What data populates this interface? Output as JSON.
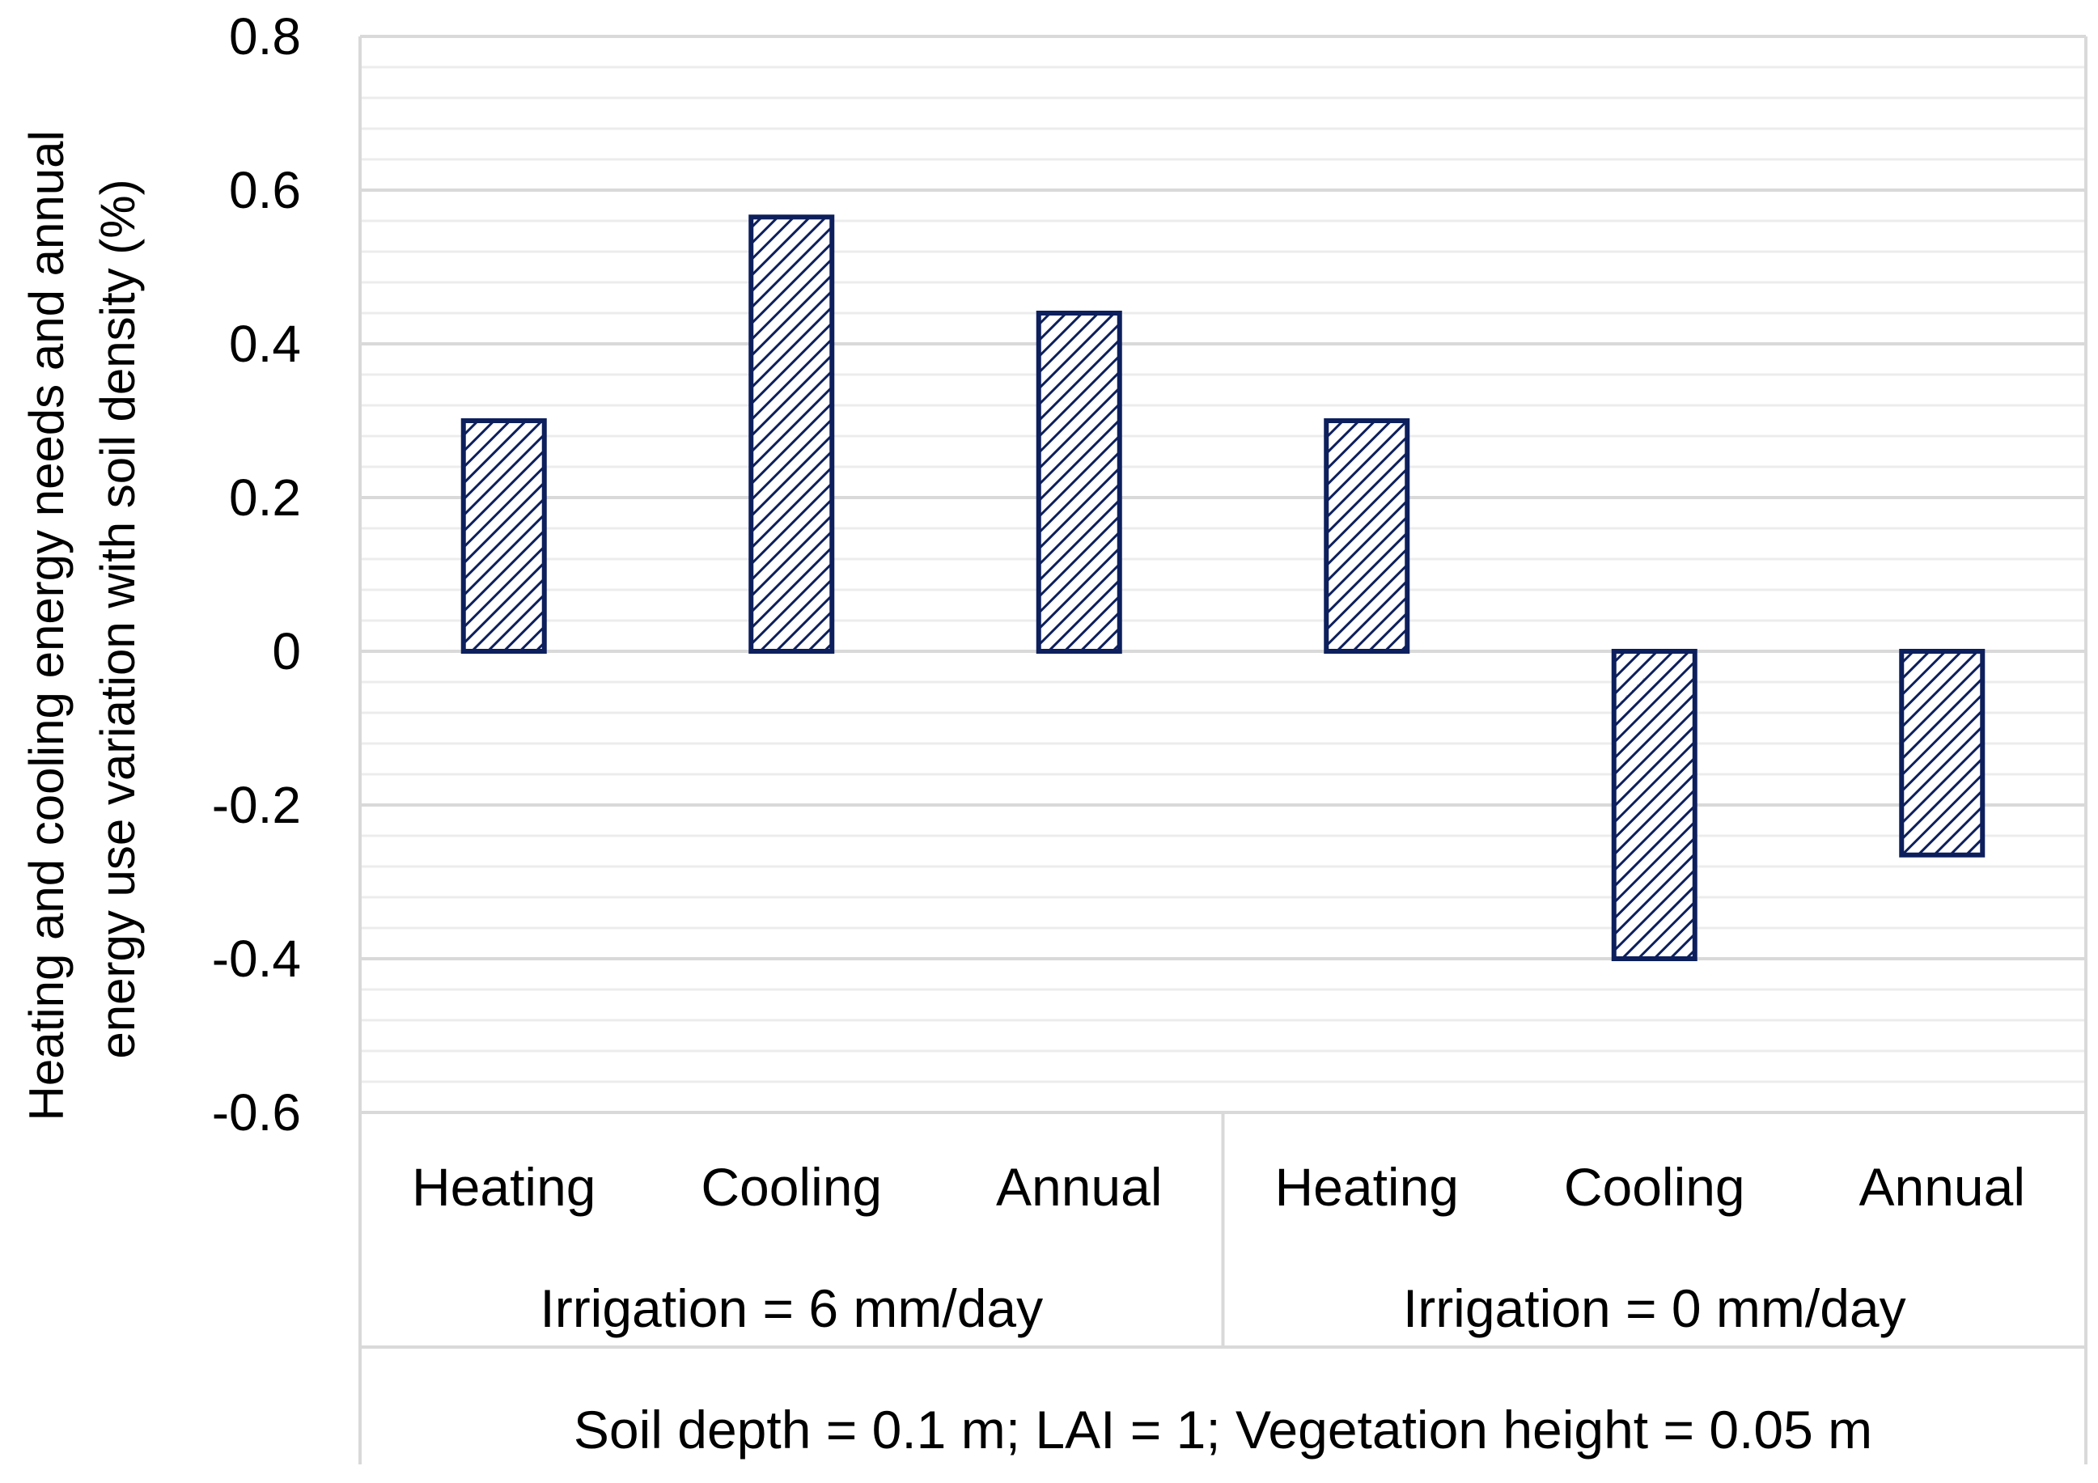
{
  "chart_data": {
    "type": "bar",
    "title": "",
    "ylabel_lines": [
      "Heating and cooling energy needs and annual",
      "energy use variation with soil density (%)"
    ],
    "xlabel": "Soil depth = 0.1 m; LAI = 1; Vegetation height = 0.05 m",
    "groups": [
      {
        "label": "Irrigation = 6 mm/day",
        "categories": [
          "Heating",
          "Cooling",
          "Annual"
        ]
      },
      {
        "label": "Irrigation = 0 mm/day",
        "categories": [
          "Heating",
          "Cooling",
          "Annual"
        ]
      }
    ],
    "categories": [
      "Heating",
      "Cooling",
      "Annual",
      "Heating",
      "Cooling",
      "Annual"
    ],
    "values": [
      0.3,
      0.565,
      0.44,
      0.3,
      -0.4,
      -0.265
    ],
    "ylim": [
      -0.6,
      0.8
    ],
    "yticks": [
      "0.8",
      "0.6",
      "0.4",
      "0.2",
      "0",
      "-0.2",
      "-0.4",
      "-0.6"
    ],
    "ytick_values": [
      0.8,
      0.6,
      0.4,
      0.2,
      0,
      -0.2,
      -0.4,
      -0.6
    ],
    "minor_grid_step": 0.04,
    "grid": true,
    "bar_color": "#0d1f5c",
    "bar_fill": "diagonal hatch",
    "grid_color": "#d9d9d9"
  }
}
